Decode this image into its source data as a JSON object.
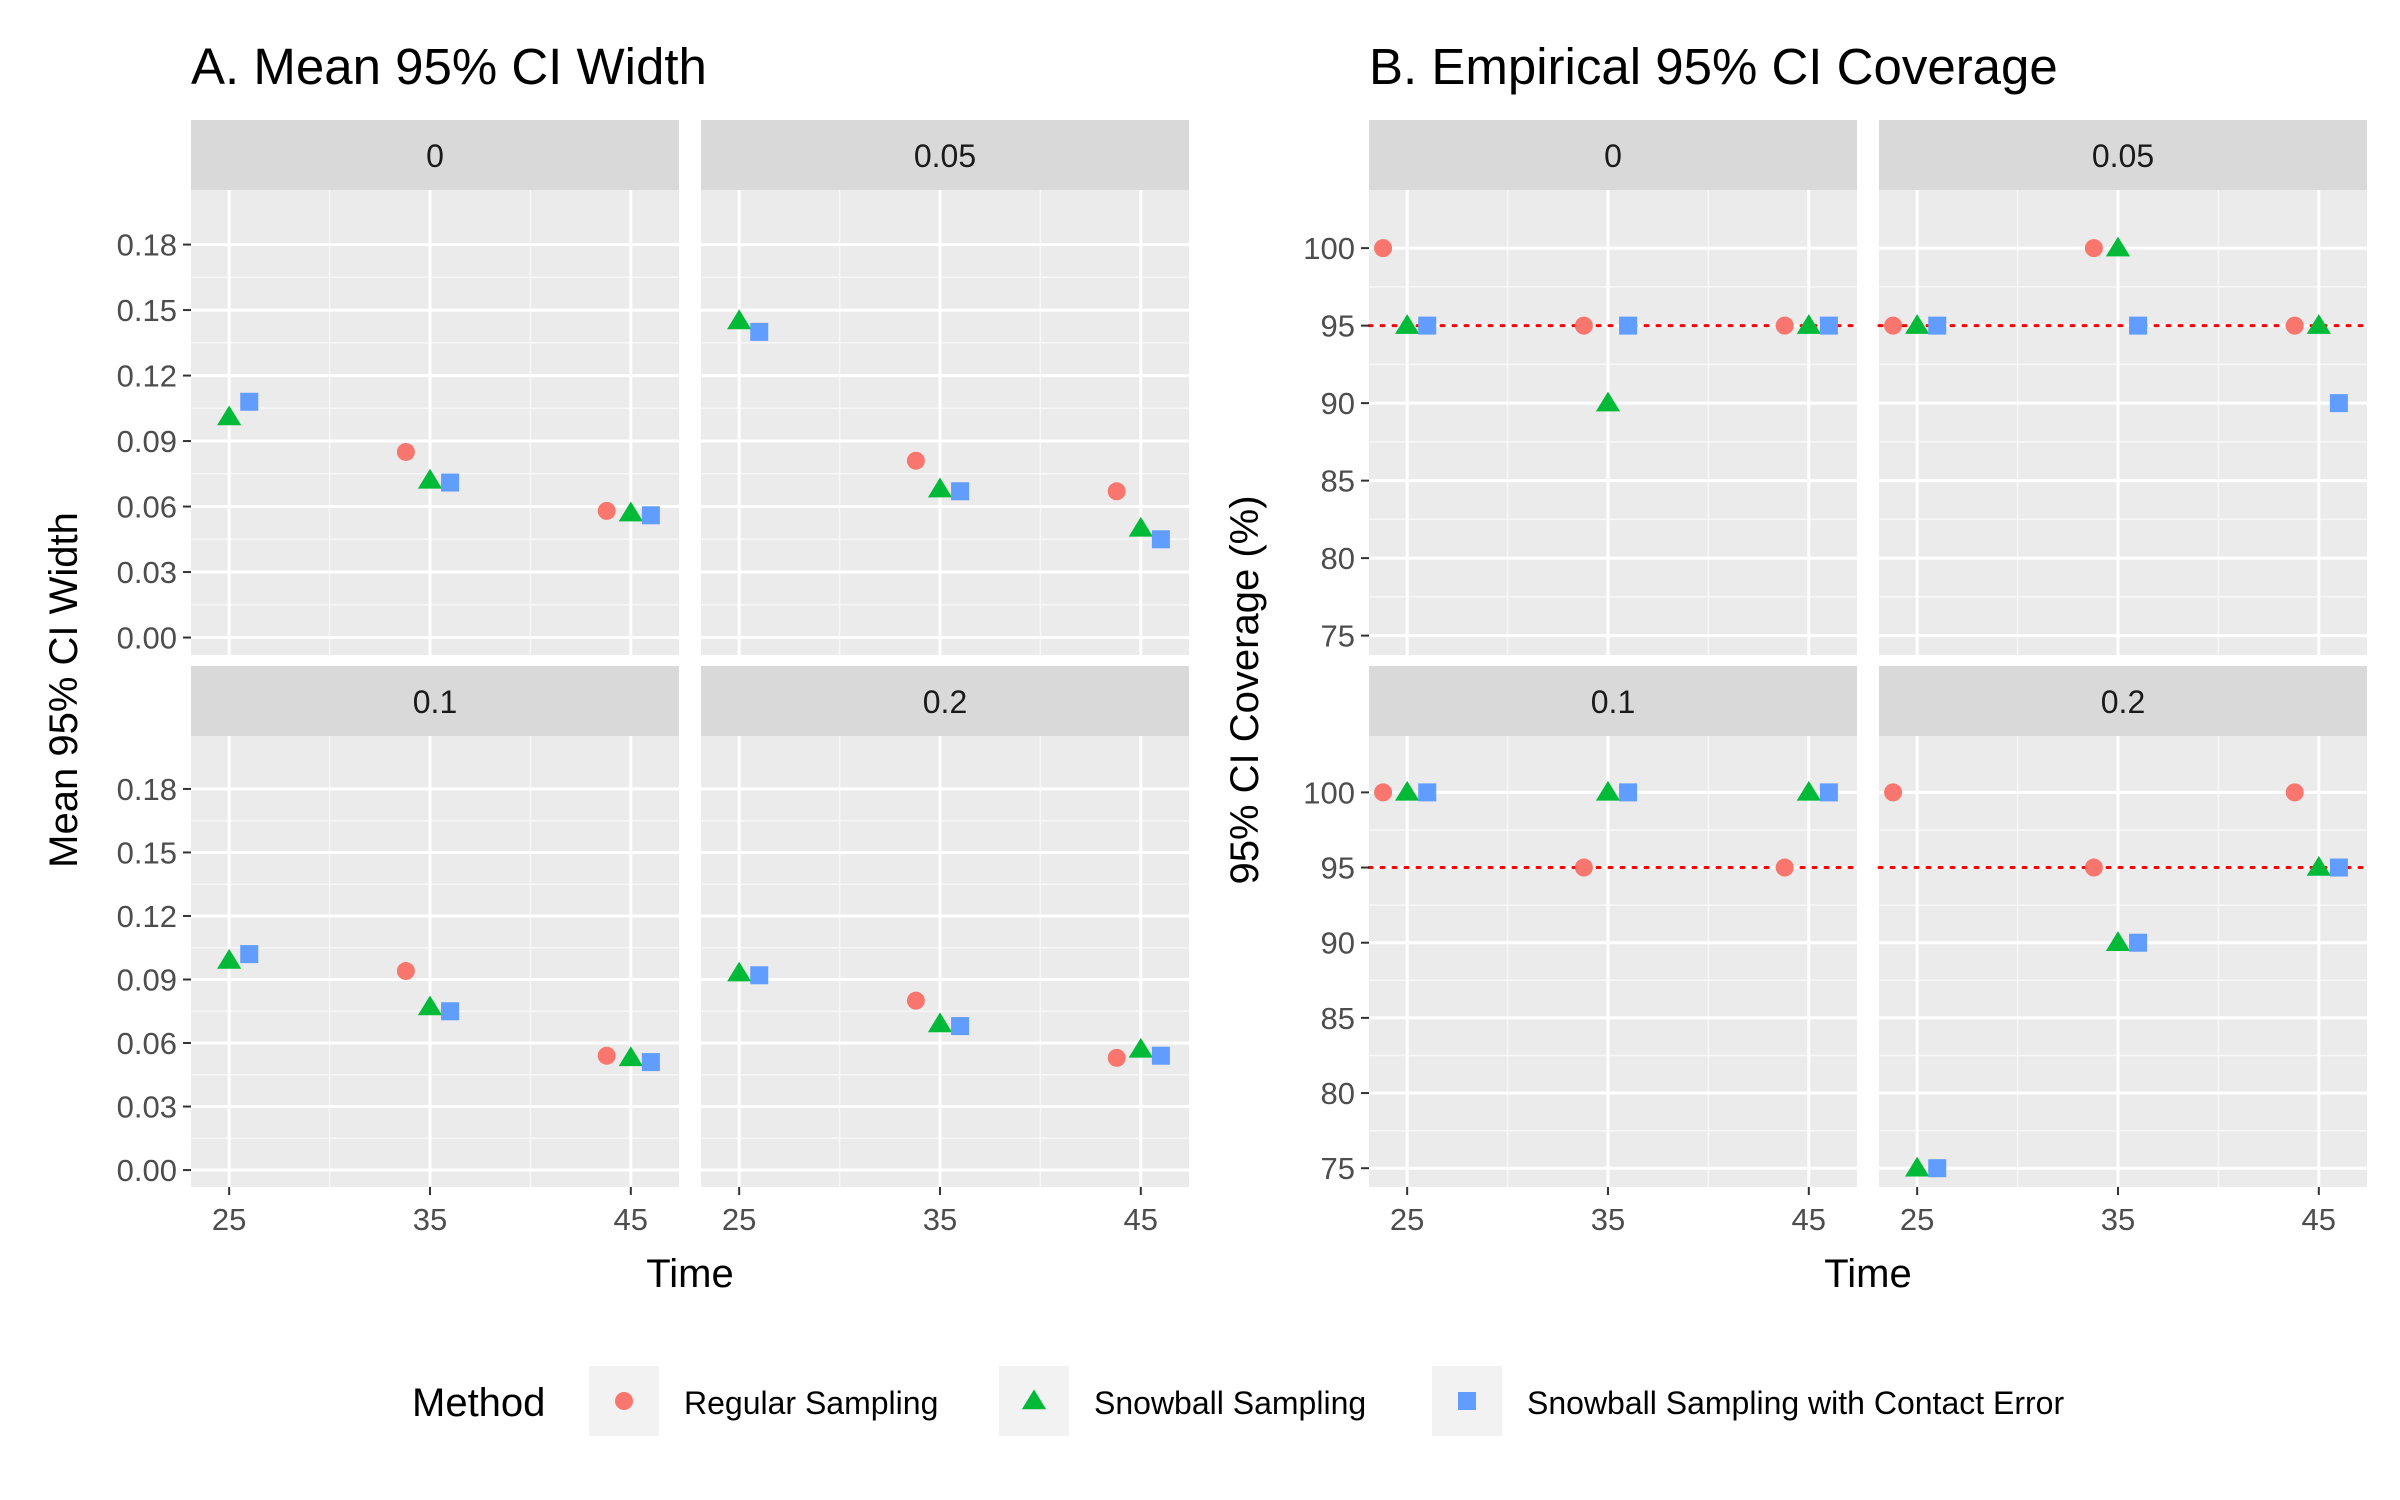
{
  "legend": {
    "title": "Method",
    "items": [
      {
        "label": "Regular Sampling",
        "shape": "circle",
        "color": "#F8766D"
      },
      {
        "label": "Snowball Sampling",
        "shape": "triangle",
        "color": "#00BA38"
      },
      {
        "label": "Snowball Sampling with Contact Error",
        "shape": "square",
        "color": "#619CFF"
      }
    ]
  },
  "chart_data": [
    {
      "type": "scatter",
      "title": "A. Mean 95% CI Width",
      "xlabel": "Time",
      "ylabel": "Mean 95% CI Width",
      "x_ticks": [
        "25",
        "35",
        "45"
      ],
      "y_ticks": [
        "0.00",
        "0.03",
        "0.06",
        "0.09",
        "0.12",
        "0.15",
        "0.18"
      ],
      "ylim": [
        -0.008,
        0.205
      ],
      "grid": true,
      "facets": [
        {
          "label": "0",
          "series": [
            {
              "name": "Regular Sampling",
              "points": [
                [
                  35,
                  0.085
                ],
                [
                  45,
                  0.058
                ]
              ]
            },
            {
              "name": "Snowball Sampling",
              "points": [
                [
                  25,
                  0.101
                ],
                [
                  35,
                  0.072
                ],
                [
                  45,
                  0.057
                ]
              ]
            },
            {
              "name": "Snowball Sampling with Contact Error",
              "points": [
                [
                  25,
                  0.108
                ],
                [
                  35,
                  0.071
                ],
                [
                  45,
                  0.056
                ]
              ]
            }
          ]
        },
        {
          "label": "0.05",
          "series": [
            {
              "name": "Regular Sampling",
              "points": [
                [
                  35,
                  0.081
                ],
                [
                  45,
                  0.067
                ]
              ]
            },
            {
              "name": "Snowball Sampling",
              "points": [
                [
                  25,
                  0.145
                ],
                [
                  35,
                  0.068
                ],
                [
                  45,
                  0.05
                ]
              ]
            },
            {
              "name": "Snowball Sampling with Contact Error",
              "points": [
                [
                  25,
                  0.14
                ],
                [
                  35,
                  0.067
                ],
                [
                  45,
                  0.045
                ]
              ]
            }
          ]
        },
        {
          "label": "0.1",
          "series": [
            {
              "name": "Regular Sampling",
              "points": [
                [
                  35,
                  0.094
                ],
                [
                  45,
                  0.054
                ]
              ]
            },
            {
              "name": "Snowball Sampling",
              "points": [
                [
                  25,
                  0.099
                ],
                [
                  35,
                  0.077
                ],
                [
                  45,
                  0.053
                ]
              ]
            },
            {
              "name": "Snowball Sampling with Contact Error",
              "points": [
                [
                  25,
                  0.102
                ],
                [
                  35,
                  0.075
                ],
                [
                  45,
                  0.051
                ]
              ]
            }
          ]
        },
        {
          "label": "0.2",
          "series": [
            {
              "name": "Regular Sampling",
              "points": [
                [
                  35,
                  0.08
                ],
                [
                  45,
                  0.053
                ]
              ]
            },
            {
              "name": "Snowball Sampling",
              "points": [
                [
                  25,
                  0.093
                ],
                [
                  35,
                  0.069
                ],
                [
                  45,
                  0.057
                ]
              ]
            },
            {
              "name": "Snowball Sampling with Contact Error",
              "points": [
                [
                  25,
                  0.092
                ],
                [
                  35,
                  0.068
                ],
                [
                  45,
                  0.054
                ]
              ]
            }
          ]
        }
      ]
    },
    {
      "type": "scatter",
      "title": "B. Empirical 95% CI Coverage",
      "xlabel": "Time",
      "ylabel": "95% CI Coverage (%)",
      "x_ticks": [
        "25",
        "35",
        "45"
      ],
      "y_ticks": [
        "75",
        "80",
        "85",
        "90",
        "95",
        "100"
      ],
      "ylim": [
        73.75,
        103.75
      ],
      "grid": true,
      "reference_line": {
        "y": 95,
        "color": "#FF0000",
        "style": "dotted"
      },
      "facets": [
        {
          "label": "0",
          "series": [
            {
              "name": "Regular Sampling",
              "points": [
                [
                  25,
                  100
                ],
                [
                  35,
                  95
                ],
                [
                  45,
                  95
                ]
              ]
            },
            {
              "name": "Snowball Sampling",
              "points": [
                [
                  25,
                  95
                ],
                [
                  35,
                  90
                ],
                [
                  45,
                  95
                ]
              ]
            },
            {
              "name": "Snowball Sampling with Contact Error",
              "points": [
                [
                  25,
                  95
                ],
                [
                  35,
                  95
                ],
                [
                  45,
                  95
                ]
              ]
            }
          ]
        },
        {
          "label": "0.05",
          "series": [
            {
              "name": "Regular Sampling",
              "points": [
                [
                  25,
                  95
                ],
                [
                  35,
                  100
                ],
                [
                  45,
                  95
                ]
              ]
            },
            {
              "name": "Snowball Sampling",
              "points": [
                [
                  25,
                  95
                ],
                [
                  35,
                  100
                ],
                [
                  45,
                  95
                ]
              ]
            },
            {
              "name": "Snowball Sampling with Contact Error",
              "points": [
                [
                  25,
                  95
                ],
                [
                  35,
                  95
                ],
                [
                  45,
                  90
                ]
              ]
            }
          ]
        },
        {
          "label": "0.1",
          "series": [
            {
              "name": "Regular Sampling",
              "points": [
                [
                  25,
                  100
                ],
                [
                  35,
                  95
                ],
                [
                  45,
                  95
                ]
              ]
            },
            {
              "name": "Snowball Sampling",
              "points": [
                [
                  25,
                  100
                ],
                [
                  35,
                  100
                ],
                [
                  45,
                  100
                ]
              ]
            },
            {
              "name": "Snowball Sampling with Contact Error",
              "points": [
                [
                  25,
                  100
                ],
                [
                  35,
                  100
                ],
                [
                  45,
                  100
                ]
              ]
            }
          ]
        },
        {
          "label": "0.2",
          "series": [
            {
              "name": "Regular Sampling",
              "points": [
                [
                  25,
                  100
                ],
                [
                  35,
                  95
                ],
                [
                  45,
                  100
                ]
              ]
            },
            {
              "name": "Snowball Sampling",
              "points": [
                [
                  25,
                  75
                ],
                [
                  35,
                  90
                ],
                [
                  45,
                  95
                ]
              ]
            },
            {
              "name": "Snowball Sampling with Contact Error",
              "points": [
                [
                  25,
                  75
                ],
                [
                  35,
                  90
                ],
                [
                  45,
                  95
                ]
              ]
            }
          ]
        }
      ]
    }
  ]
}
